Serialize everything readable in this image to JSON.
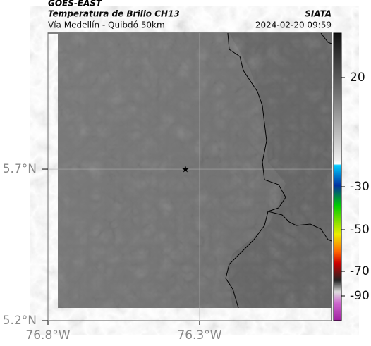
{
  "header": {
    "title": "GOES-EAST",
    "subtitle": "Temperatura de Brillo CH13",
    "region": "Vía Medellín - Quibdó 50km",
    "source": "SIATA",
    "timestamp": "2024-02-20 09:59"
  },
  "map": {
    "xlim": [
      -76.8,
      -75.865
    ],
    "ylim": [
      5.2,
      6.149
    ],
    "xticks": [
      {
        "value": -76.8,
        "label": "76.8°W"
      },
      {
        "value": -76.3,
        "label": "76.3°W"
      }
    ],
    "yticks": [
      {
        "value": 5.7,
        "label": "5.7°N"
      },
      {
        "value": 5.2,
        "label": "5.2°N"
      }
    ],
    "grid": true
  },
  "colorbar": {
    "ticks": [
      20,
      -30,
      -50,
      -70,
      -90
    ]
  }
}
